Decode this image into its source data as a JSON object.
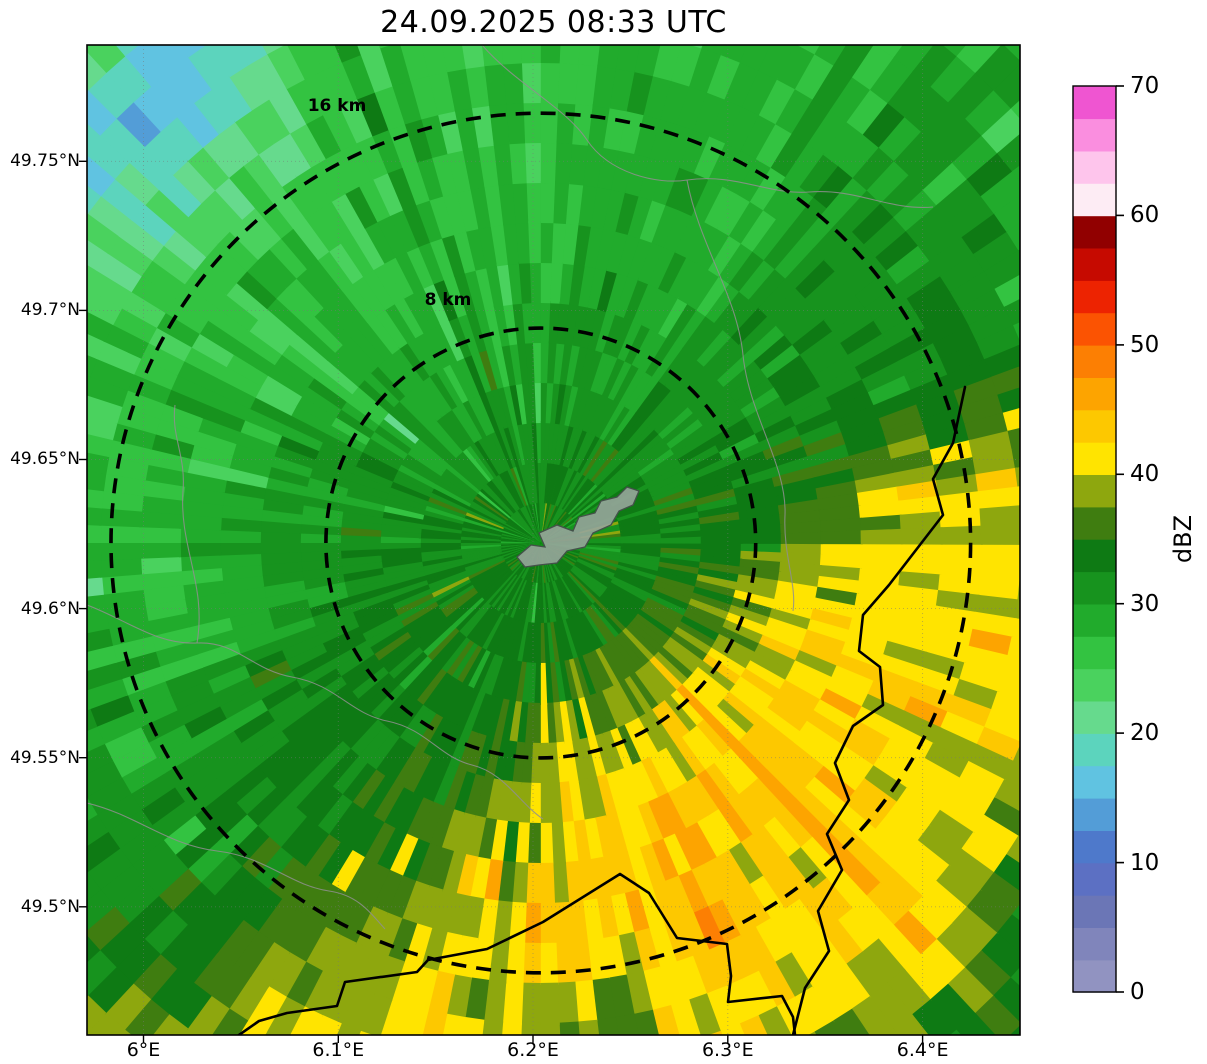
{
  "title": "24.09.2025 08:33 UTC",
  "axes": {
    "x_tick_labels": [
      "6°E",
      "6.1°E",
      "6.2°E",
      "6.3°E",
      "6.4°E"
    ],
    "x_tick_lons": [
      6.0,
      6.1,
      6.2,
      6.3,
      6.4
    ],
    "y_tick_labels": [
      "49.75°N",
      "49.7°N",
      "49.65°N",
      "49.6°N",
      "49.55°N",
      "49.5°N"
    ],
    "y_tick_lats": [
      49.75,
      49.7,
      49.65,
      49.6,
      49.55,
      49.5
    ]
  },
  "range_rings": [
    {
      "label": "16 km",
      "radius_km": 16
    },
    {
      "label": "8 km",
      "radius_km": 8
    }
  ],
  "colorbar": {
    "label": "dBZ",
    "tick_values": [
      0,
      10,
      20,
      30,
      40,
      50,
      60,
      70
    ],
    "min": 0,
    "max": 70,
    "step": 2.5,
    "colors": [
      {
        "v": 0.0,
        "c": "#9193c1"
      },
      {
        "v": 2.5,
        "c": "#8085bb"
      },
      {
        "v": 5.0,
        "c": "#6b76b6"
      },
      {
        "v": 7.5,
        "c": "#5c70c3"
      },
      {
        "v": 10.0,
        "c": "#4e79cb"
      },
      {
        "v": 12.5,
        "c": "#539dd7"
      },
      {
        "v": 15.0,
        "c": "#60c3e1"
      },
      {
        "v": 17.5,
        "c": "#5cd4bd"
      },
      {
        "v": 20.0,
        "c": "#66da8d"
      },
      {
        "v": 22.5,
        "c": "#4ad25e"
      },
      {
        "v": 25.0,
        "c": "#33c341"
      },
      {
        "v": 27.5,
        "c": "#21ab2c"
      },
      {
        "v": 30.0,
        "c": "#17931e"
      },
      {
        "v": 32.5,
        "c": "#0e7a14"
      },
      {
        "v": 35.0,
        "c": "#3f7d10"
      },
      {
        "v": 37.5,
        "c": "#8ea70e"
      },
      {
        "v": 40.0,
        "c": "#ffe400"
      },
      {
        "v": 42.5,
        "c": "#fdc800"
      },
      {
        "v": 45.0,
        "c": "#fda400"
      },
      {
        "v": 47.5,
        "c": "#fc7f03"
      },
      {
        "v": 50.0,
        "c": "#fb5302"
      },
      {
        "v": 52.5,
        "c": "#ed2301"
      },
      {
        "v": 55.0,
        "c": "#c60a00"
      },
      {
        "v": 57.5,
        "c": "#910000"
      },
      {
        "v": 60.0,
        "c": "#fdecf4"
      },
      {
        "v": 62.5,
        "c": "#fec5ec"
      },
      {
        "v": 65.0,
        "c": "#fa8edf"
      },
      {
        "v": 67.5,
        "c": "#ef55d1"
      }
    ]
  },
  "chart_data": {
    "type": "heatmap",
    "title": "24.09.2025 08:33 UTC",
    "value_units": "dBZ",
    "x_ticks": [
      "6°E",
      "6.1°E",
      "6.2°E",
      "6.3°E",
      "6.4°E"
    ],
    "y_ticks": [
      "49.75°N",
      "49.7°N",
      "49.65°N",
      "49.6°N",
      "49.55°N",
      "49.5°N"
    ],
    "lon_range": [
      5.971,
      6.45
    ],
    "lat_range": [
      49.457,
      49.789
    ],
    "colorbar_label": "dBZ",
    "colorbar_ticks": [
      0,
      10,
      20,
      30,
      40,
      50,
      60,
      70
    ],
    "colorbar_range": [
      0,
      70
    ],
    "range_rings_km": [
      16,
      8
    ],
    "ring_center_lonlat": [
      6.204,
      49.622
    ],
    "grid": {
      "description": "approximate radar reflectivity (dBZ) on a 10x10 grid, rows north to south, columns west to east, estimated from the rendered colors",
      "values": [
        [
          22,
          15,
          24,
          26,
          27,
          27,
          28,
          28,
          29,
          28
        ],
        [
          16,
          19,
          26,
          27,
          27,
          28,
          28,
          29,
          29,
          30
        ],
        [
          24,
          25,
          27,
          27,
          28,
          28,
          29,
          30,
          31,
          30
        ],
        [
          26,
          27,
          28,
          29,
          30,
          30,
          30,
          31,
          32,
          34
        ],
        [
          27,
          28,
          30,
          31,
          32,
          32,
          32,
          34,
          40,
          38
        ],
        [
          28,
          29,
          31,
          33,
          33,
          33,
          36,
          41,
          42,
          41
        ],
        [
          29,
          30,
          32,
          33,
          34,
          38,
          42,
          43,
          41,
          42
        ],
        [
          30,
          31,
          32,
          34,
          38,
          43,
          44,
          44,
          42,
          38
        ],
        [
          31,
          32,
          36,
          38,
          42,
          44,
          45,
          42,
          42,
          34
        ],
        [
          39,
          38,
          41,
          42,
          40,
          36,
          42,
          40,
          36,
          31
        ]
      ]
    }
  }
}
